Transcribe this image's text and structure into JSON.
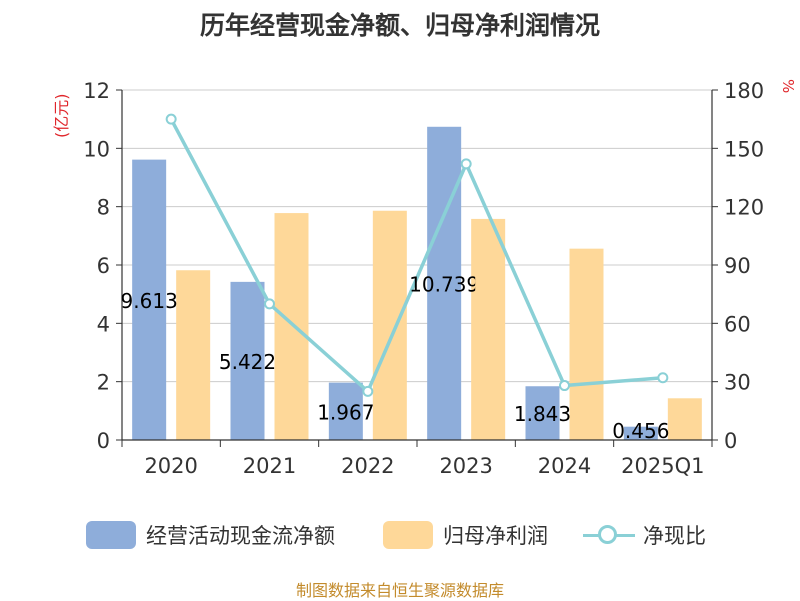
{
  "chart_data": {
    "type": "bar",
    "title": "历年经营现金净额、归母净利润情况",
    "categories": [
      "2020",
      "2021",
      "2022",
      "2023",
      "2024",
      "2025Q1"
    ],
    "ylabel_left": "(亿元)",
    "ylabel_right": "%",
    "ylim_left": [
      0,
      12
    ],
    "ylim_right": [
      0,
      180
    ],
    "yticks_left": [
      "0",
      "2",
      "4",
      "6",
      "8",
      "10",
      "12"
    ],
    "yticks_right": [
      "0",
      "30",
      "60",
      "90",
      "120",
      "150",
      "180"
    ],
    "grid": true,
    "legend_position": "bottom",
    "series": [
      {
        "name": "经营活动现金流净额",
        "type": "bar",
        "axis": "left",
        "color": "#8eadda",
        "values": [
          9.613,
          5.422,
          1.967,
          10.739,
          1.843,
          0.456
        ],
        "labels": [
          "9.613",
          "5.422",
          "1.967",
          "10.739",
          "1.843",
          "0.456"
        ]
      },
      {
        "name": "归母净利润",
        "type": "bar",
        "axis": "left",
        "color": "#fed899",
        "values": [
          5.82,
          7.78,
          7.86,
          7.58,
          6.56,
          1.43
        ]
      },
      {
        "name": "净现比",
        "type": "line",
        "axis": "right",
        "color": "#8ad0d6",
        "values": [
          165,
          70,
          25,
          142,
          28,
          32
        ]
      }
    ]
  },
  "source": "制图数据来自恒生聚源数据库"
}
